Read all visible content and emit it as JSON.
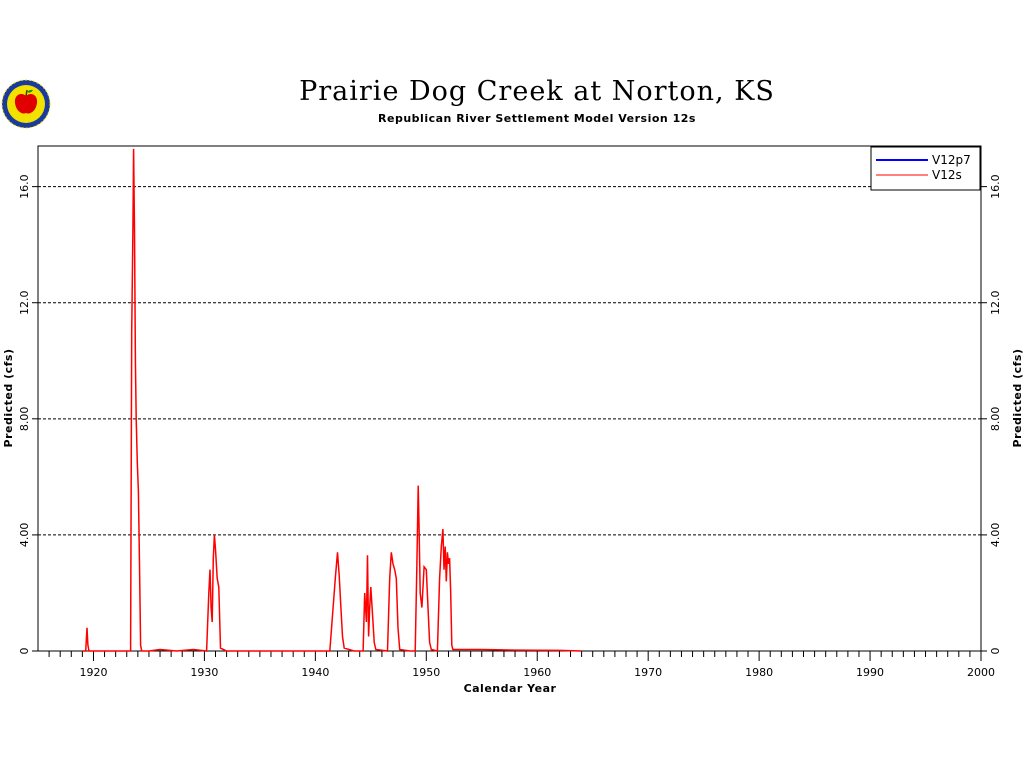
{
  "header": {
    "title": "Prairie Dog Creek at Norton, KS",
    "subtitle": "Republican River Settlement Model Version 12s",
    "logo": "apple-seal-icon"
  },
  "chart_data": {
    "type": "line",
    "title": "Prairie Dog Creek at Norton, KS",
    "subtitle": "Republican River Settlement Model Version 12s",
    "xlabel": "Calendar Year",
    "ylabel_left": "Predicted (cfs)",
    "ylabel_right": "Predicted (cfs)",
    "xlim": [
      1915,
      2000
    ],
    "ylim": [
      0,
      17.4
    ],
    "xticks": [
      1920,
      1930,
      1940,
      1950,
      1960,
      1970,
      1980,
      1990,
      2000
    ],
    "xtick_labels": [
      "1920",
      "1930",
      "1940",
      "1950",
      "1960",
      "1970",
      "1980",
      "1990",
      "2000"
    ],
    "yticks": [
      0,
      4,
      8,
      12,
      16
    ],
    "ytick_labels": [
      "0",
      "4.00",
      "8.00",
      "12.0",
      "16.0"
    ],
    "grid": "horizontal-dashed",
    "legend_position": "top-right",
    "series": [
      {
        "name": "V12p7",
        "color": "#0000ff",
        "x": [],
        "y": []
      },
      {
        "name": "V12s",
        "color": "#ff0000",
        "x": [
          1919.0,
          1919.3,
          1919.42,
          1919.5,
          1919.6,
          1920.5,
          1923.0,
          1923.35,
          1923.45,
          1923.55,
          1923.62,
          1923.7,
          1923.78,
          1923.85,
          1923.95,
          1924.05,
          1924.15,
          1924.25,
          1924.35,
          1924.45,
          1925.0,
          1926.0,
          1927.5,
          1929.0,
          1930.2,
          1930.4,
          1930.5,
          1930.6,
          1930.7,
          1930.8,
          1930.9,
          1931.0,
          1931.15,
          1931.3,
          1931.45,
          1932.0,
          1934.0,
          1940.0,
          1941.3,
          1941.6,
          1941.8,
          1942.0,
          1942.15,
          1942.3,
          1942.45,
          1942.6,
          1943.5,
          1944.3,
          1944.45,
          1944.6,
          1944.7,
          1944.8,
          1944.9,
          1945.0,
          1945.1,
          1945.2,
          1945.3,
          1945.45,
          1946.5,
          1946.7,
          1946.85,
          1947.0,
          1947.15,
          1947.3,
          1947.45,
          1947.6,
          1948.5,
          1949.0,
          1949.15,
          1949.27,
          1949.35,
          1949.45,
          1949.6,
          1949.8,
          1950.0,
          1950.15,
          1950.3,
          1950.45,
          1951.0,
          1951.2,
          1951.35,
          1951.5,
          1951.6,
          1951.7,
          1951.8,
          1951.9,
          1952.0,
          1952.1,
          1952.2,
          1952.3,
          1952.4,
          1953.5,
          1955.0,
          1958.0,
          1962.0,
          1964.0
        ],
        "y": [
          0,
          0,
          0.8,
          0.2,
          0,
          0,
          0,
          0,
          11.0,
          14.5,
          17.3,
          14.5,
          10.0,
          8.0,
          6.5,
          5.5,
          3.0,
          0.2,
          0,
          0,
          0,
          0.05,
          0,
          0.05,
          0,
          2.0,
          2.8,
          1.5,
          1.0,
          3.2,
          4.0,
          3.5,
          2.5,
          2.2,
          0.1,
          0,
          0,
          0,
          0,
          1.5,
          2.5,
          3.4,
          2.6,
          1.5,
          0.5,
          0.1,
          0,
          0,
          2.0,
          1.0,
          3.3,
          0.5,
          1.5,
          2.2,
          1.6,
          1.0,
          0.3,
          0.05,
          0,
          2.5,
          3.4,
          3.0,
          2.8,
          2.5,
          0.8,
          0.05,
          0,
          0,
          3.0,
          5.7,
          4.2,
          2.0,
          1.5,
          2.9,
          2.8,
          1.5,
          0.3,
          0.05,
          0,
          2.5,
          3.6,
          4.2,
          2.8,
          3.6,
          2.4,
          3.4,
          3.0,
          3.2,
          2.0,
          0.2,
          0.05,
          0.05,
          0.05,
          0.03,
          0.02,
          0
        ]
      }
    ]
  }
}
